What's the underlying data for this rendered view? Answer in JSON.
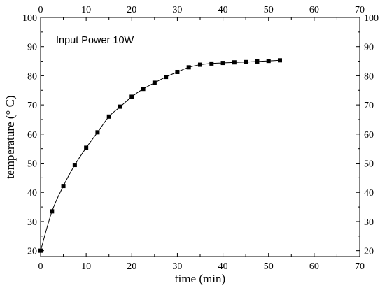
{
  "chart_data": {
    "type": "line",
    "title": "",
    "xlabel": "time (min)",
    "ylabel": "temperature (° C)",
    "xlim": [
      0,
      70
    ],
    "ylim": [
      18,
      100
    ],
    "xticks": [
      0,
      10,
      20,
      30,
      40,
      50,
      60,
      70
    ],
    "yticks": [
      20,
      30,
      40,
      50,
      60,
      70,
      80,
      90,
      100
    ],
    "grid": false,
    "mirror_axes": true,
    "annotation": "Input Power 10W",
    "marker": "square",
    "color": "#000000",
    "points": [
      {
        "x": 0,
        "y": 20
      },
      {
        "x": 2.5,
        "y": 33.5
      },
      {
        "x": 5,
        "y": 42.2
      },
      {
        "x": 7.5,
        "y": 49.4
      },
      {
        "x": 10,
        "y": 55.3
      },
      {
        "x": 12.5,
        "y": 60.6
      },
      {
        "x": 15,
        "y": 66
      },
      {
        "x": 17.5,
        "y": 69.4
      },
      {
        "x": 20,
        "y": 72.8
      },
      {
        "x": 22.5,
        "y": 75.5
      },
      {
        "x": 25,
        "y": 77.6
      },
      {
        "x": 27.5,
        "y": 79.6
      },
      {
        "x": 30,
        "y": 81.3
      },
      {
        "x": 32.5,
        "y": 82.9
      },
      {
        "x": 35,
        "y": 83.8
      },
      {
        "x": 37.5,
        "y": 84.2
      },
      {
        "x": 40,
        "y": 84.4
      },
      {
        "x": 42.5,
        "y": 84.6
      },
      {
        "x": 45,
        "y": 84.7
      },
      {
        "x": 47.5,
        "y": 84.9
      },
      {
        "x": 50,
        "y": 85.1
      },
      {
        "x": 52.5,
        "y": 85.3
      }
    ]
  }
}
